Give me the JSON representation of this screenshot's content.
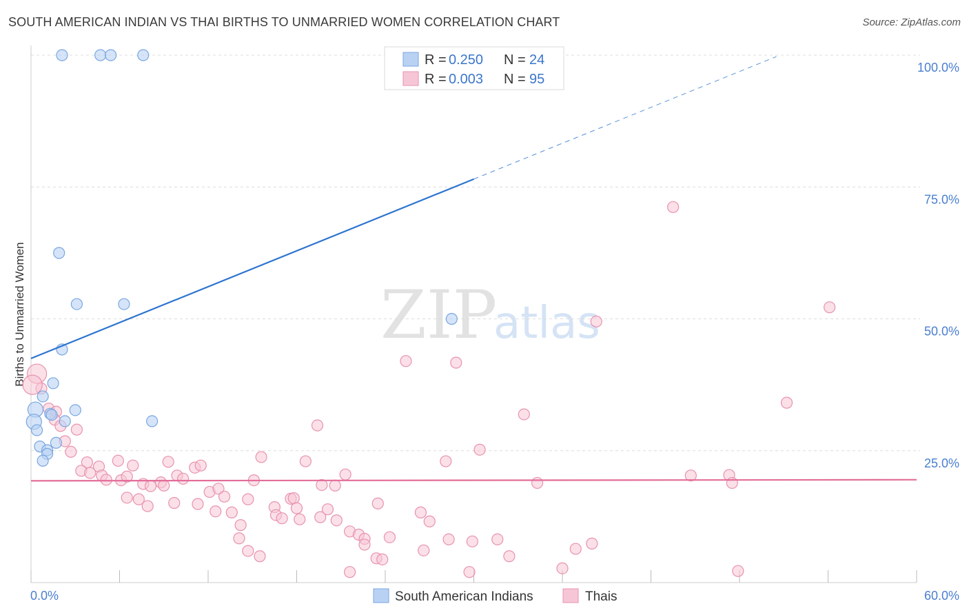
{
  "title": "SOUTH AMERICAN INDIAN VS THAI BIRTHS TO UNMARRIED WOMEN CORRELATION CHART",
  "source": "Source: ZipAtlas.com",
  "watermark": {
    "zip": "ZIP",
    "atlas": "atlas"
  },
  "chart_data": {
    "type": "scatter",
    "title": "SOUTH AMERICAN INDIAN VS THAI BIRTHS TO UNMARRIED WOMEN CORRELATION CHART",
    "xlabel": "",
    "ylabel": "Births to Unmarried Women",
    "xlim": [
      0,
      60
    ],
    "ylim": [
      0,
      100
    ],
    "x_tick_labels": {
      "min": "0.0%",
      "max": "60.0%"
    },
    "y_ticks": [
      25,
      50,
      75,
      100
    ],
    "y_tick_labels": [
      "25.0%",
      "50.0%",
      "75.0%",
      "100.0%"
    ],
    "grid": true,
    "legend": {
      "top": [
        {
          "r_label": "R =",
          "r_value": "0.250",
          "n_label": "N =",
          "n_value": "24"
        },
        {
          "r_label": "R =",
          "r_value": "0.003",
          "n_label": "N =",
          "n_value": "95"
        }
      ],
      "bottom": [
        "South American Indians",
        "Thais"
      ]
    },
    "colors": {
      "blue_fill": "#b9d2f3",
      "blue_stroke": "#7aa6e0",
      "blue_line": "#2d74cf",
      "pink_fill": "#f7c6d6",
      "pink_stroke": "#e892ad",
      "pink_line": "#e36d98",
      "grid": "#dcdcdc",
      "tick_text": "#4a7fd0"
    },
    "series": [
      {
        "name": "South American Indians",
        "trend": {
          "x0": 0,
          "y0": 42.5,
          "x1": 30,
          "y1": 76.5,
          "dash_to_x": 50.5
        },
        "points": [
          [
            2.1,
            100
          ],
          [
            4.7,
            100
          ],
          [
            5.4,
            100
          ],
          [
            7.6,
            100
          ],
          [
            1.9,
            62.5
          ],
          [
            3.1,
            52.8
          ],
          [
            6.3,
            52.8
          ],
          [
            28.5,
            50
          ],
          [
            2.1,
            44.2
          ],
          [
            1.5,
            37.8
          ],
          [
            0.8,
            35.3
          ],
          [
            0.3,
            32.8
          ],
          [
            0.2,
            30.5
          ],
          [
            1.3,
            32
          ],
          [
            1.4,
            31.8
          ],
          [
            3.0,
            32.7
          ],
          [
            2.3,
            30.6
          ],
          [
            8.2,
            30.6
          ],
          [
            0.4,
            28.9
          ],
          [
            1.7,
            26.5
          ],
          [
            0.6,
            25.8
          ],
          [
            1.1,
            25.1
          ],
          [
            1.1,
            24.4
          ],
          [
            0.8,
            23.1
          ]
        ]
      },
      {
        "name": "Thais",
        "trend": {
          "x0": 0,
          "y0": 19.3,
          "x1": 60,
          "y1": 19.5
        },
        "points": [
          [
            0.4,
            39.6
          ],
          [
            0.7,
            36.8
          ],
          [
            1.2,
            33.0
          ],
          [
            1.7,
            32.4
          ],
          [
            1.6,
            30.9
          ],
          [
            2.0,
            29.7
          ],
          [
            3.1,
            29.0
          ],
          [
            2.3,
            26.8
          ],
          [
            2.7,
            24.8
          ],
          [
            3.8,
            22.8
          ],
          [
            4.6,
            22.0
          ],
          [
            3.4,
            21.2
          ],
          [
            4.0,
            20.8
          ],
          [
            4.8,
            20.3
          ],
          [
            5.1,
            19.5
          ],
          [
            5.9,
            23.1
          ],
          [
            6.1,
            19.4
          ],
          [
            6.5,
            20.1
          ],
          [
            6.9,
            22.2
          ],
          [
            7.6,
            18.7
          ],
          [
            8.1,
            18.3
          ],
          [
            8.8,
            19.0
          ],
          [
            9.0,
            18.4
          ],
          [
            9.3,
            22.9
          ],
          [
            9.9,
            20.3
          ],
          [
            10.3,
            19.7
          ],
          [
            11.1,
            21.8
          ],
          [
            11.5,
            22.2
          ],
          [
            6.5,
            16.1
          ],
          [
            7.3,
            15.8
          ],
          [
            7.9,
            14.5
          ],
          [
            9.7,
            15.1
          ],
          [
            11.3,
            14.9
          ],
          [
            12.1,
            17.2
          ],
          [
            12.7,
            17.8
          ],
          [
            12.5,
            13.5
          ],
          [
            13.1,
            16.3
          ],
          [
            13.6,
            13.3
          ],
          [
            14.2,
            10.9
          ],
          [
            14.1,
            8.4
          ],
          [
            14.7,
            15.8
          ],
          [
            15.1,
            19.4
          ],
          [
            15.6,
            23.8
          ],
          [
            14.7,
            6.0
          ],
          [
            15.5,
            5.0
          ],
          [
            16.5,
            14.3
          ],
          [
            16.6,
            12.8
          ],
          [
            17.0,
            12.2
          ],
          [
            17.6,
            15.9
          ],
          [
            17.8,
            16.0
          ],
          [
            18.0,
            14.1
          ],
          [
            18.2,
            12.0
          ],
          [
            18.6,
            23.0
          ],
          [
            19.4,
            29.8
          ],
          [
            19.6,
            12.4
          ],
          [
            19.7,
            18.5
          ],
          [
            20.1,
            13.9
          ],
          [
            20.6,
            18.4
          ],
          [
            21.3,
            20.5
          ],
          [
            20.7,
            11.8
          ],
          [
            21.6,
            9.7
          ],
          [
            22.2,
            9.1
          ],
          [
            22.6,
            8.3
          ],
          [
            22.6,
            7.2
          ],
          [
            23.4,
            4.6
          ],
          [
            23.8,
            4.4
          ],
          [
            23.5,
            15.0
          ],
          [
            24.3,
            8.6
          ],
          [
            21.6,
            2.0
          ],
          [
            25.4,
            42.0
          ],
          [
            27.0,
            11.6
          ],
          [
            26.4,
            13.3
          ],
          [
            26.6,
            6.1
          ],
          [
            28.1,
            23.0
          ],
          [
            28.3,
            8.2
          ],
          [
            28.8,
            41.7
          ],
          [
            29.7,
            2.0
          ],
          [
            29.9,
            7.8
          ],
          [
            30.4,
            25.2
          ],
          [
            31.6,
            8.2
          ],
          [
            32.4,
            5.0
          ],
          [
            33.4,
            31.9
          ],
          [
            34.3,
            18.9
          ],
          [
            36.0,
            2.7
          ],
          [
            36.9,
            6.4
          ],
          [
            38.0,
            7.4
          ],
          [
            38.3,
            49.5
          ],
          [
            43.5,
            71.2
          ],
          [
            44.7,
            20.3
          ],
          [
            47.3,
            20.4
          ],
          [
            47.5,
            18.9
          ],
          [
            47.9,
            2.2
          ],
          [
            51.2,
            34.1
          ],
          [
            54.1,
            52.2
          ],
          [
            0.1,
            37.5
          ]
        ]
      }
    ]
  }
}
